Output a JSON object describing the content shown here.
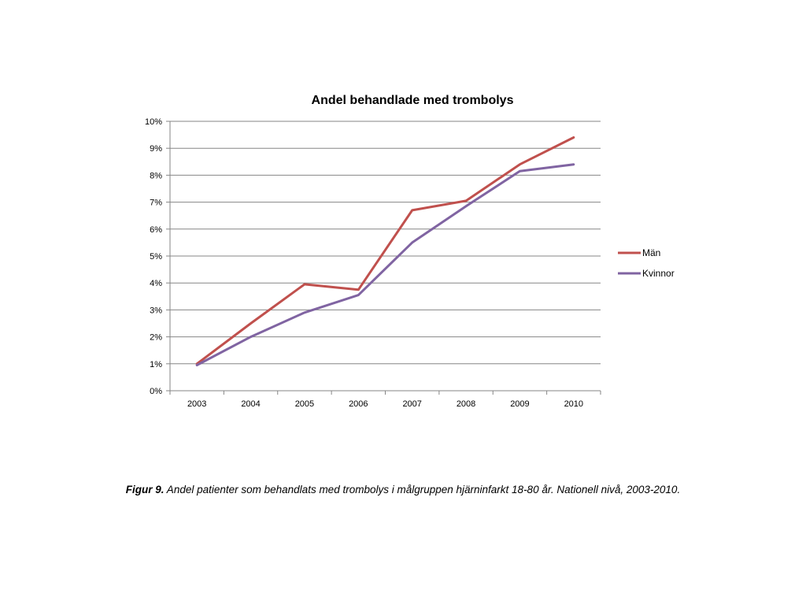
{
  "chart_data": {
    "type": "line",
    "title": "Andel behandlade med trombolys",
    "xlabel": "",
    "ylabel": "",
    "categories": [
      "2003",
      "2004",
      "2005",
      "2006",
      "2007",
      "2008",
      "2009",
      "2010"
    ],
    "ylim": [
      0,
      10
    ],
    "y_ticks": [
      "0%",
      "1%",
      "2%",
      "3%",
      "4%",
      "5%",
      "6%",
      "7%",
      "8%",
      "9%",
      "10%"
    ],
    "grid": true,
    "legend_position": "right",
    "series": [
      {
        "name": "Män",
        "color": "#c0504d",
        "values": [
          1.0,
          2.5,
          3.95,
          3.75,
          6.7,
          7.05,
          8.4,
          9.4
        ]
      },
      {
        "name": "Kvinnor",
        "color": "#8064a2",
        "values": [
          0.95,
          2.0,
          2.9,
          3.55,
          5.5,
          6.85,
          8.15,
          8.4
        ]
      }
    ]
  },
  "caption": {
    "label": "Figur 9.",
    "text": " Andel patienter som behandlats med trombolys i målgruppen hjärninfarkt 18-80 år. Nationell nivå, 2003-2010."
  }
}
